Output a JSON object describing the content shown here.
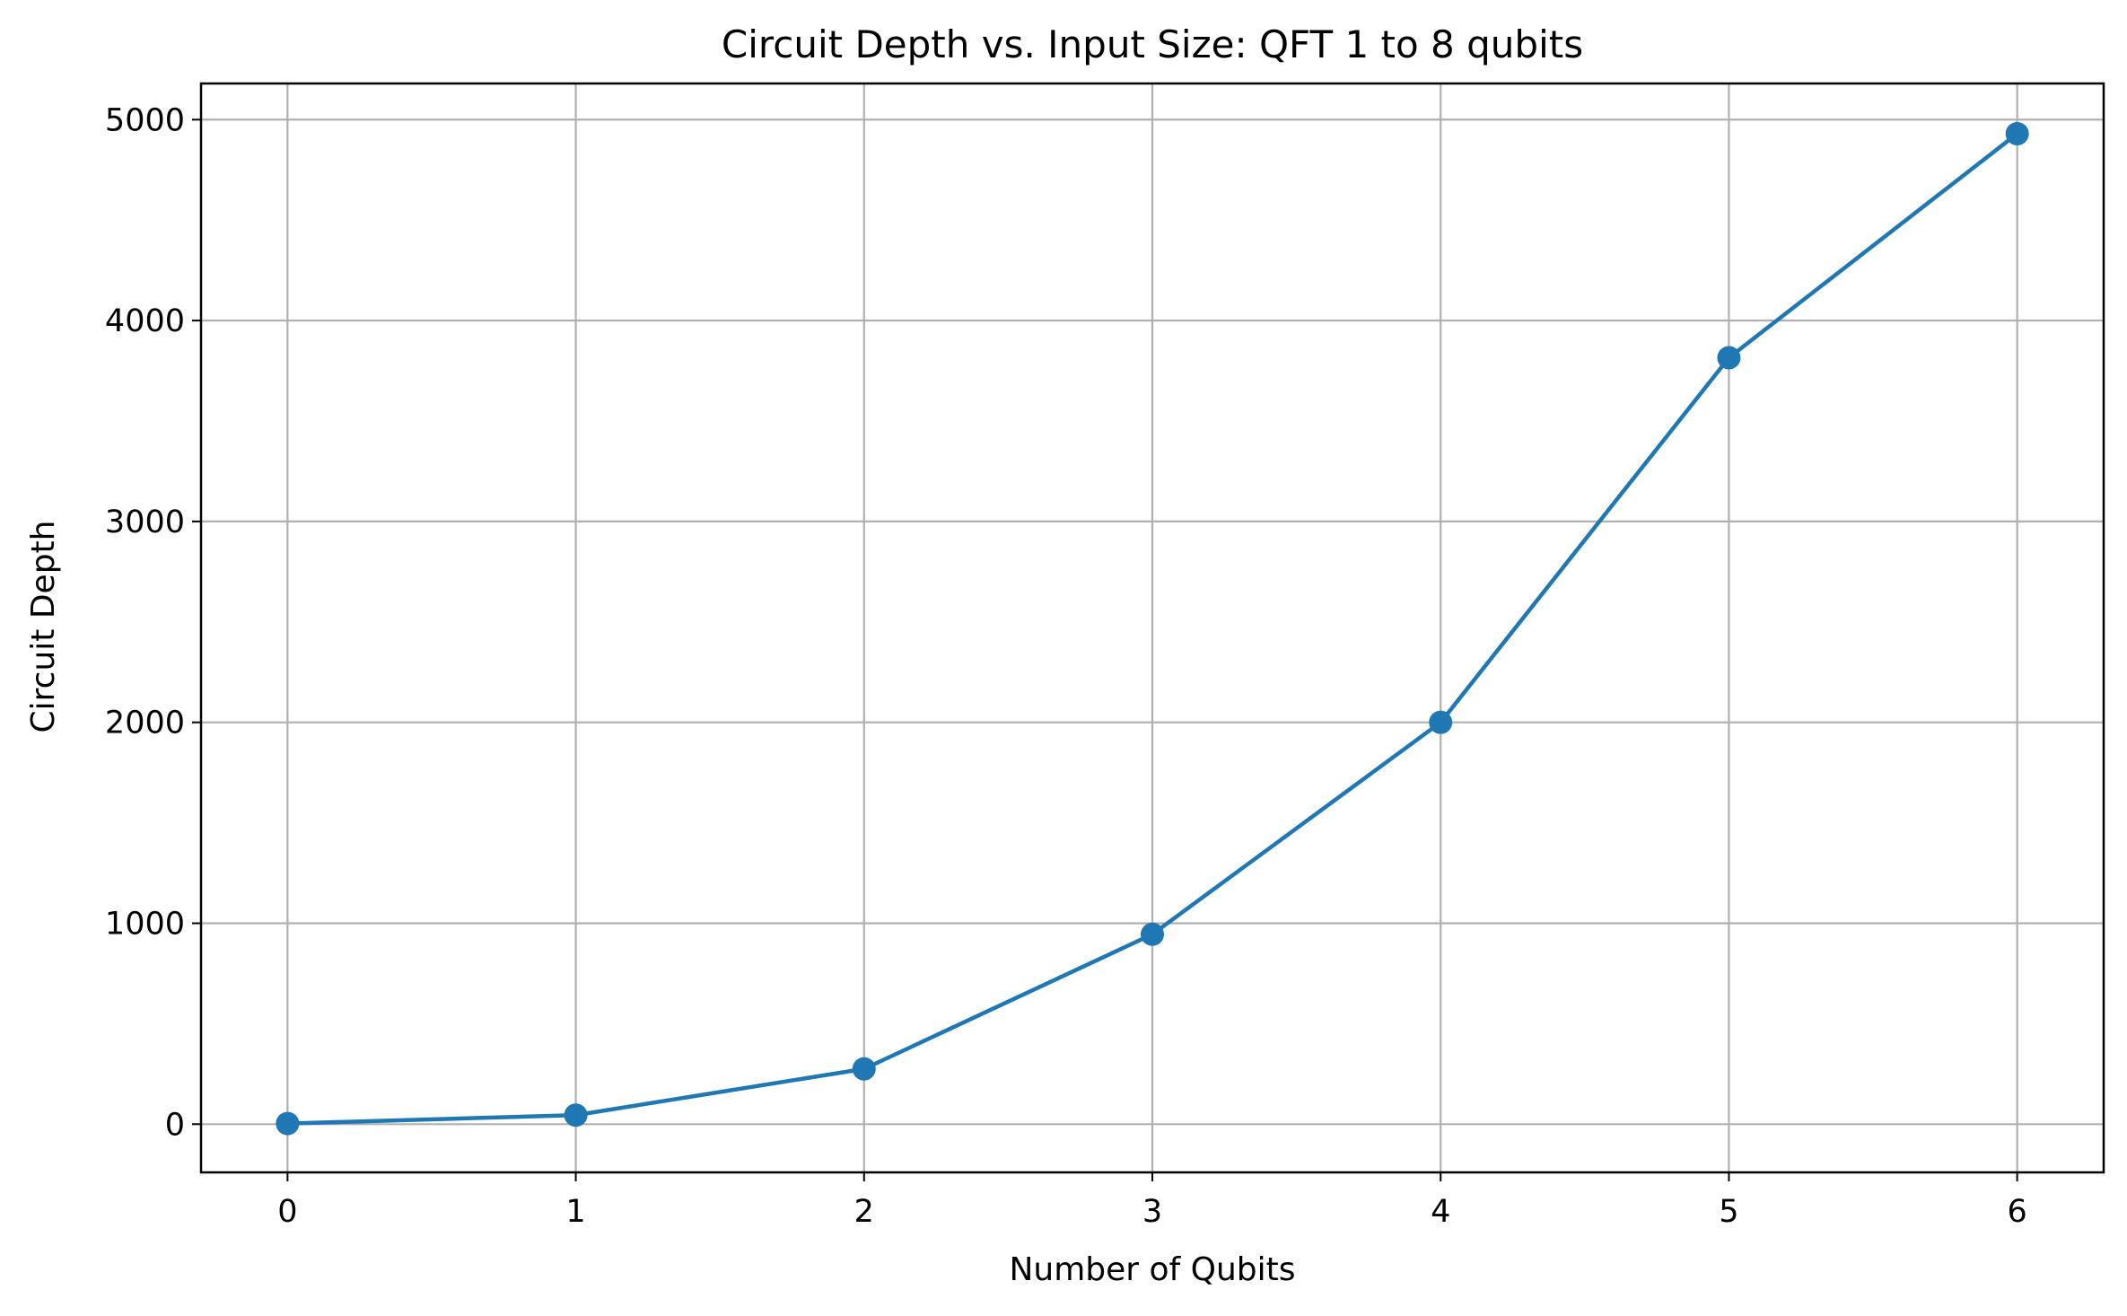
{
  "chart_data": {
    "type": "line",
    "title": "Circuit Depth vs. Input Size: QFT 1 to 8 qubits",
    "xlabel": "Number of Qubits",
    "ylabel": "Circuit Depth",
    "x": [
      0,
      1,
      2,
      3,
      4,
      5,
      6
    ],
    "series": [
      {
        "values": [
          3,
          45,
          275,
          945,
          2000,
          3815,
          4930
        ],
        "color": "#1f77b4",
        "marker": "circle"
      }
    ],
    "xticks": [
      0,
      1,
      2,
      3,
      4,
      5,
      6
    ],
    "yticks": [
      0,
      1000,
      2000,
      3000,
      4000,
      5000
    ],
    "xlim": [
      -0.3,
      6.3
    ],
    "ylim": [
      -240,
      5180
    ],
    "grid": true
  }
}
